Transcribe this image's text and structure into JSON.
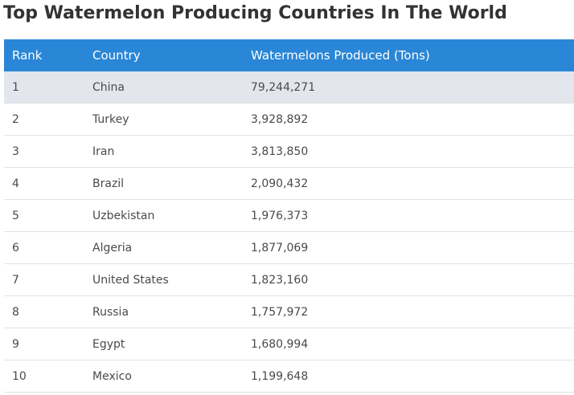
{
  "title": "Top Watermelon Producing Countries In The World",
  "colors": {
    "header_background": "#2a86d6",
    "highlight_row": "#e3e6ec"
  },
  "chart_data": {
    "type": "table",
    "title": "Top Watermelon Producing Countries In The World",
    "columns": [
      "Rank",
      "Country",
      "Watermelons Produced (Tons)"
    ],
    "rows": [
      {
        "rank": "1",
        "country": "China",
        "value": "79,244,271"
      },
      {
        "rank": "2",
        "country": "Turkey",
        "value": "3,928,892"
      },
      {
        "rank": "3",
        "country": "Iran",
        "value": "3,813,850"
      },
      {
        "rank": "4",
        "country": "Brazil",
        "value": "2,090,432"
      },
      {
        "rank": "5",
        "country": "Uzbekistan",
        "value": "1,976,373"
      },
      {
        "rank": "6",
        "country": "Algeria",
        "value": "1,877,069"
      },
      {
        "rank": "7",
        "country": "United States",
        "value": "1,823,160"
      },
      {
        "rank": "8",
        "country": "Russia",
        "value": "1,757,972"
      },
      {
        "rank": "9",
        "country": "Egypt",
        "value": "1,680,994"
      },
      {
        "rank": "10",
        "country": "Mexico",
        "value": "1,199,648"
      }
    ]
  }
}
